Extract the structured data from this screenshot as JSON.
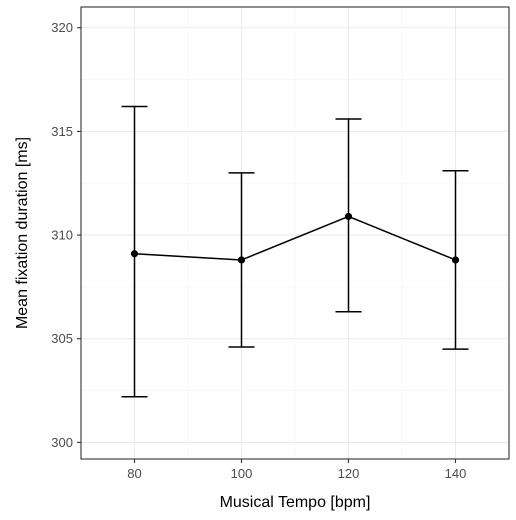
{
  "chart_data": {
    "type": "line",
    "title": "",
    "xlabel": "Musical Tempo [bpm]",
    "ylabel": "Mean fixation duration [ms]",
    "x": [
      80,
      100,
      120,
      140
    ],
    "series": [
      {
        "values": [
          309.1,
          308.8,
          310.9,
          308.8
        ],
        "error_lower": [
          302.2,
          304.6,
          306.3,
          304.5
        ],
        "error_upper": [
          316.2,
          313.0,
          315.6,
          313.1
        ]
      }
    ],
    "xlim": [
      70,
      150
    ],
    "ylim": [
      299.2,
      321.0
    ],
    "xticks": [
      80,
      100,
      120,
      140
    ],
    "xtick_labels": [
      "80",
      "100",
      "120",
      "140"
    ],
    "yticks": [
      300,
      305,
      310,
      315,
      320
    ],
    "ytick_labels": [
      "300",
      "305",
      "310",
      "315",
      "320"
    ],
    "grid": true,
    "legend": "none",
    "colors": {
      "line": "#000000",
      "point": "#000000",
      "grid_major": "#ebebeb",
      "grid_minor": "#f5f5f5",
      "panel_border": "#333333",
      "tick_label": "#4d4d4d"
    }
  }
}
